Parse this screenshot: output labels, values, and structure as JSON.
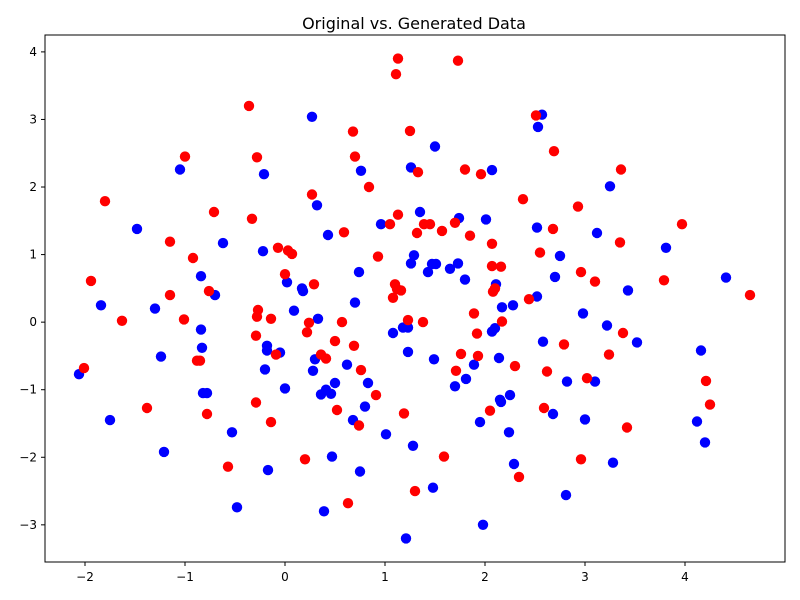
{
  "chart_data": {
    "type": "scatter",
    "title": "Original vs. Generated Data",
    "xlabel": "",
    "ylabel": "",
    "xlim": [
      -2.4,
      5.0
    ],
    "ylim": [
      -3.55,
      4.25
    ],
    "xticks": [
      -2,
      -1,
      0,
      1,
      2,
      3,
      4
    ],
    "yticks": [
      -3,
      -2,
      -1,
      0,
      1,
      2,
      3,
      4
    ],
    "grid": false,
    "series": [
      {
        "color": "#0000ff",
        "points": [
          [
            -2.06,
            -0.77
          ],
          [
            -1.84,
            0.25
          ],
          [
            -1.75,
            -1.45
          ],
          [
            -1.48,
            1.38
          ],
          [
            -1.3,
            0.2
          ],
          [
            -1.24,
            -0.51
          ],
          [
            -1.21,
            -1.92
          ],
          [
            -1.05,
            2.26
          ],
          [
            -0.84,
            0.68
          ],
          [
            -0.84,
            -0.11
          ],
          [
            -0.83,
            -0.38
          ],
          [
            -0.82,
            -1.05
          ],
          [
            -0.78,
            -1.05
          ],
          [
            -0.7,
            0.4
          ],
          [
            -0.62,
            1.17
          ],
          [
            -0.53,
            -1.63
          ],
          [
            -0.48,
            -2.74
          ],
          [
            -0.22,
            1.05
          ],
          [
            -0.21,
            2.19
          ],
          [
            -0.2,
            -0.7
          ],
          [
            -0.18,
            -0.35
          ],
          [
            -0.18,
            -0.42
          ],
          [
            -0.17,
            -2.19
          ],
          [
            -0.05,
            -0.45
          ],
          [
            0.0,
            -0.98
          ],
          [
            0.02,
            0.59
          ],
          [
            0.09,
            0.17
          ],
          [
            0.17,
            0.5
          ],
          [
            0.18,
            0.46
          ],
          [
            0.27,
            3.04
          ],
          [
            0.28,
            -0.72
          ],
          [
            0.3,
            -0.55
          ],
          [
            0.32,
            1.73
          ],
          [
            0.33,
            0.05
          ],
          [
            0.36,
            -1.07
          ],
          [
            0.39,
            -2.8
          ],
          [
            0.41,
            -1.0
          ],
          [
            0.43,
            1.29
          ],
          [
            0.46,
            -1.06
          ],
          [
            0.47,
            -1.99
          ],
          [
            0.5,
            -0.9
          ],
          [
            0.62,
            -0.63
          ],
          [
            0.68,
            -1.45
          ],
          [
            0.7,
            0.29
          ],
          [
            0.74,
            0.74
          ],
          [
            0.75,
            -2.21
          ],
          [
            0.76,
            2.24
          ],
          [
            0.8,
            -1.25
          ],
          [
            0.83,
            -0.9
          ],
          [
            0.96,
            1.45
          ],
          [
            1.01,
            -1.66
          ],
          [
            1.08,
            -0.16
          ],
          [
            1.18,
            -0.08
          ],
          [
            1.21,
            -3.2
          ],
          [
            1.23,
            -0.08
          ],
          [
            1.23,
            -0.44
          ],
          [
            1.26,
            0.87
          ],
          [
            1.26,
            2.29
          ],
          [
            1.28,
            -1.83
          ],
          [
            1.29,
            0.99
          ],
          [
            1.35,
            1.63
          ],
          [
            1.43,
            0.74
          ],
          [
            1.47,
            0.86
          ],
          [
            1.48,
            -2.45
          ],
          [
            1.49,
            -0.55
          ],
          [
            1.5,
            2.6
          ],
          [
            1.51,
            0.86
          ],
          [
            1.65,
            0.79
          ],
          [
            1.7,
            -0.95
          ],
          [
            1.73,
            0.87
          ],
          [
            1.74,
            1.54
          ],
          [
            1.8,
            0.63
          ],
          [
            1.81,
            -0.84
          ],
          [
            1.89,
            -0.63
          ],
          [
            1.95,
            -1.48
          ],
          [
            1.98,
            -3.0
          ],
          [
            2.01,
            1.52
          ],
          [
            2.07,
            -0.14
          ],
          [
            2.07,
            2.25
          ],
          [
            2.1,
            -0.09
          ],
          [
            2.11,
            0.56
          ],
          [
            2.14,
            -0.53
          ],
          [
            2.15,
            -1.15
          ],
          [
            2.16,
            -1.18
          ],
          [
            2.17,
            0.22
          ],
          [
            2.24,
            -1.63
          ],
          [
            2.25,
            -1.08
          ],
          [
            2.28,
            0.25
          ],
          [
            2.29,
            -2.1
          ],
          [
            2.52,
            0.38
          ],
          [
            2.52,
            1.4
          ],
          [
            2.53,
            2.89
          ],
          [
            2.57,
            3.07
          ],
          [
            2.58,
            -0.29
          ],
          [
            2.68,
            -1.36
          ],
          [
            2.7,
            0.67
          ],
          [
            2.75,
            0.98
          ],
          [
            2.81,
            -2.56
          ],
          [
            2.82,
            -0.88
          ],
          [
            2.98,
            0.13
          ],
          [
            3.0,
            -1.44
          ],
          [
            3.1,
            -0.88
          ],
          [
            3.12,
            1.32
          ],
          [
            3.22,
            -0.05
          ],
          [
            3.25,
            2.01
          ],
          [
            3.28,
            -2.08
          ],
          [
            3.43,
            0.47
          ],
          [
            3.52,
            -0.3
          ],
          [
            3.81,
            1.1
          ],
          [
            4.12,
            -1.47
          ],
          [
            4.16,
            -0.42
          ],
          [
            4.2,
            -1.78
          ],
          [
            4.41,
            0.66
          ]
        ]
      },
      {
        "color": "#ff0000",
        "points": [
          [
            -2.01,
            -0.68
          ],
          [
            -1.94,
            0.61
          ],
          [
            -1.8,
            1.79
          ],
          [
            -1.63,
            0.02
          ],
          [
            -1.38,
            -1.27
          ],
          [
            -1.15,
            1.19
          ],
          [
            -1.15,
            0.4
          ],
          [
            -1.01,
            0.04
          ],
          [
            -1.0,
            2.45
          ],
          [
            -0.92,
            0.95
          ],
          [
            -0.88,
            -0.57
          ],
          [
            -0.85,
            -0.57
          ],
          [
            -0.78,
            -1.36
          ],
          [
            -0.76,
            0.46
          ],
          [
            -0.71,
            1.63
          ],
          [
            -0.57,
            -2.14
          ],
          [
            -0.36,
            3.2
          ],
          [
            -0.33,
            1.53
          ],
          [
            -0.29,
            -1.19
          ],
          [
            -0.29,
            -0.2
          ],
          [
            -0.28,
            2.44
          ],
          [
            -0.28,
            0.08
          ],
          [
            -0.27,
            0.18
          ],
          [
            -0.14,
            0.05
          ],
          [
            -0.14,
            -1.48
          ],
          [
            -0.09,
            -0.48
          ],
          [
            -0.07,
            1.1
          ],
          [
            0.0,
            0.71
          ],
          [
            0.03,
            1.06
          ],
          [
            0.07,
            1.01
          ],
          [
            0.2,
            -2.03
          ],
          [
            0.22,
            -0.15
          ],
          [
            0.24,
            -0.01
          ],
          [
            0.27,
            1.89
          ],
          [
            0.29,
            0.56
          ],
          [
            0.36,
            -0.48
          ],
          [
            0.41,
            -0.54
          ],
          [
            0.5,
            -0.28
          ],
          [
            0.52,
            -1.3
          ],
          [
            0.57,
            0.0
          ],
          [
            0.59,
            1.33
          ],
          [
            0.63,
            -2.68
          ],
          [
            0.68,
            2.82
          ],
          [
            0.69,
            -0.35
          ],
          [
            0.7,
            2.45
          ],
          [
            0.74,
            -1.53
          ],
          [
            0.76,
            -0.71
          ],
          [
            0.84,
            2.0
          ],
          [
            0.91,
            -1.08
          ],
          [
            0.93,
            0.97
          ],
          [
            1.05,
            1.45
          ],
          [
            1.08,
            0.36
          ],
          [
            1.1,
            0.56
          ],
          [
            1.11,
            3.67
          ],
          [
            1.12,
            0.49
          ],
          [
            1.13,
            1.59
          ],
          [
            1.13,
            3.9
          ],
          [
            1.16,
            0.47
          ],
          [
            1.19,
            -1.35
          ],
          [
            1.23,
            0.03
          ],
          [
            1.25,
            2.83
          ],
          [
            1.3,
            -2.5
          ],
          [
            1.32,
            1.32
          ],
          [
            1.33,
            2.22
          ],
          [
            1.38,
            0.0
          ],
          [
            1.39,
            1.45
          ],
          [
            1.45,
            1.45
          ],
          [
            1.57,
            1.35
          ],
          [
            1.59,
            -1.99
          ],
          [
            1.7,
            1.47
          ],
          [
            1.71,
            -0.72
          ],
          [
            1.73,
            3.87
          ],
          [
            1.76,
            -0.47
          ],
          [
            1.8,
            2.26
          ],
          [
            1.85,
            1.28
          ],
          [
            1.89,
            0.13
          ],
          [
            1.92,
            -0.17
          ],
          [
            1.93,
            -0.5
          ],
          [
            1.96,
            2.19
          ],
          [
            2.05,
            -1.31
          ],
          [
            2.07,
            0.83
          ],
          [
            2.07,
            1.16
          ],
          [
            2.08,
            0.45
          ],
          [
            2.1,
            0.5
          ],
          [
            2.16,
            0.82
          ],
          [
            2.17,
            0.01
          ],
          [
            2.3,
            -0.65
          ],
          [
            2.34,
            -2.29
          ],
          [
            2.38,
            1.82
          ],
          [
            2.44,
            0.34
          ],
          [
            2.51,
            3.06
          ],
          [
            2.55,
            1.03
          ],
          [
            2.59,
            -1.27
          ],
          [
            2.62,
            -0.73
          ],
          [
            2.68,
            1.38
          ],
          [
            2.69,
            2.53
          ],
          [
            2.79,
            -0.33
          ],
          [
            2.93,
            1.71
          ],
          [
            2.96,
            0.74
          ],
          [
            2.96,
            -2.03
          ],
          [
            3.02,
            -0.83
          ],
          [
            3.1,
            0.6
          ],
          [
            3.24,
            -0.48
          ],
          [
            3.35,
            1.18
          ],
          [
            3.36,
            2.26
          ],
          [
            3.38,
            -0.16
          ],
          [
            3.42,
            -1.56
          ],
          [
            3.79,
            0.62
          ],
          [
            3.97,
            1.45
          ],
          [
            4.21,
            -0.87
          ],
          [
            4.25,
            -1.22
          ],
          [
            4.65,
            0.4
          ]
        ]
      }
    ]
  }
}
